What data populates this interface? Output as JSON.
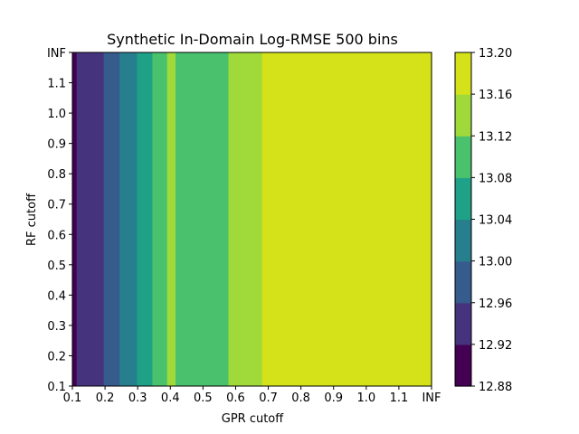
{
  "chart_data": {
    "type": "heatmap",
    "subtype": "filled-contour",
    "title": "Synthetic In-Domain Log-RMSE 500 bins",
    "xlabel": "GPR cutoff",
    "ylabel": "RF cutoff",
    "x_tick_labels": [
      "0.1",
      "0.2",
      "0.3",
      "0.4",
      "0.5",
      "0.6",
      "0.7",
      "0.8",
      "0.9",
      "1.0",
      "1.1",
      "INF"
    ],
    "y_tick_labels": [
      "0.1",
      "0.2",
      "0.3",
      "0.4",
      "0.5",
      "0.6",
      "0.7",
      "0.8",
      "0.9",
      "1.0",
      "1.1",
      "INF"
    ],
    "xlim": [
      0.1,
      1.2
    ],
    "ylim": [
      0.1,
      1.2
    ],
    "levels": [
      12.88,
      12.92,
      12.96,
      13.0,
      13.04,
      13.08,
      13.12,
      13.16,
      13.2
    ],
    "level_colors": [
      "#440154",
      "#46337e",
      "#365c8d",
      "#277f8e",
      "#1fa187",
      "#4ac16d",
      "#9fda3a",
      "#d5e21a"
    ],
    "colorbar_tick_labels": [
      "12.88",
      "12.92",
      "12.96",
      "13.00",
      "13.04",
      "13.08",
      "13.12",
      "13.16",
      "13.20"
    ],
    "bands": [
      {
        "x_start": 0.1,
        "x_end": 0.113,
        "level_index": 0
      },
      {
        "x_start": 0.113,
        "x_end": 0.128,
        "level_index": 1
      },
      {
        "x_start": 0.128,
        "x_end": 0.196,
        "level_index": 1
      },
      {
        "x_start": 0.196,
        "x_end": 0.245,
        "level_index": 2
      },
      {
        "x_start": 0.245,
        "x_end": 0.298,
        "level_index": 3
      },
      {
        "x_start": 0.298,
        "x_end": 0.345,
        "level_index": 4
      },
      {
        "x_start": 0.345,
        "x_end": 0.39,
        "level_index": 5
      },
      {
        "x_start": 0.39,
        "x_end": 0.416,
        "level_index": 6
      },
      {
        "x_start": 0.416,
        "x_end": 0.578,
        "level_index": 5
      },
      {
        "x_start": 0.578,
        "x_end": 0.681,
        "level_index": 6
      },
      {
        "x_start": 0.681,
        "x_end": 1.2,
        "level_index": 7
      }
    ],
    "grid": false
  }
}
